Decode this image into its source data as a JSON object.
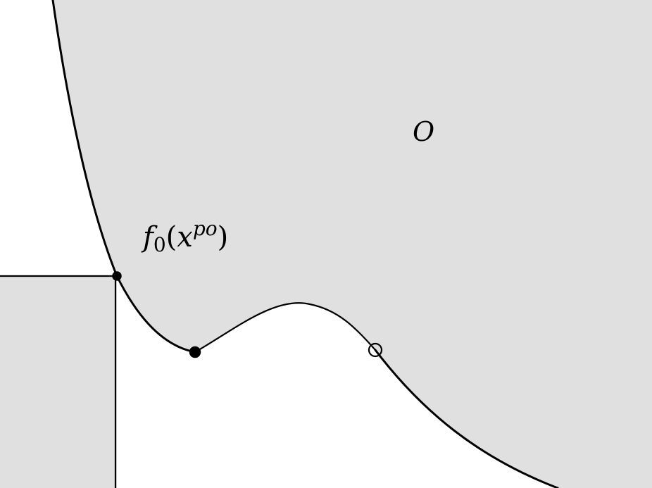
{
  "diagram": {
    "labels": {
      "region": "O",
      "point_f": "f",
      "point_sub": "0",
      "point_open_paren": "(",
      "point_var": "x",
      "point_sup": "po",
      "point_close_paren": ")"
    },
    "colors": {
      "region_fill": "#e0e0e0",
      "stroke": "#000000",
      "background": "#ffffff"
    }
  }
}
